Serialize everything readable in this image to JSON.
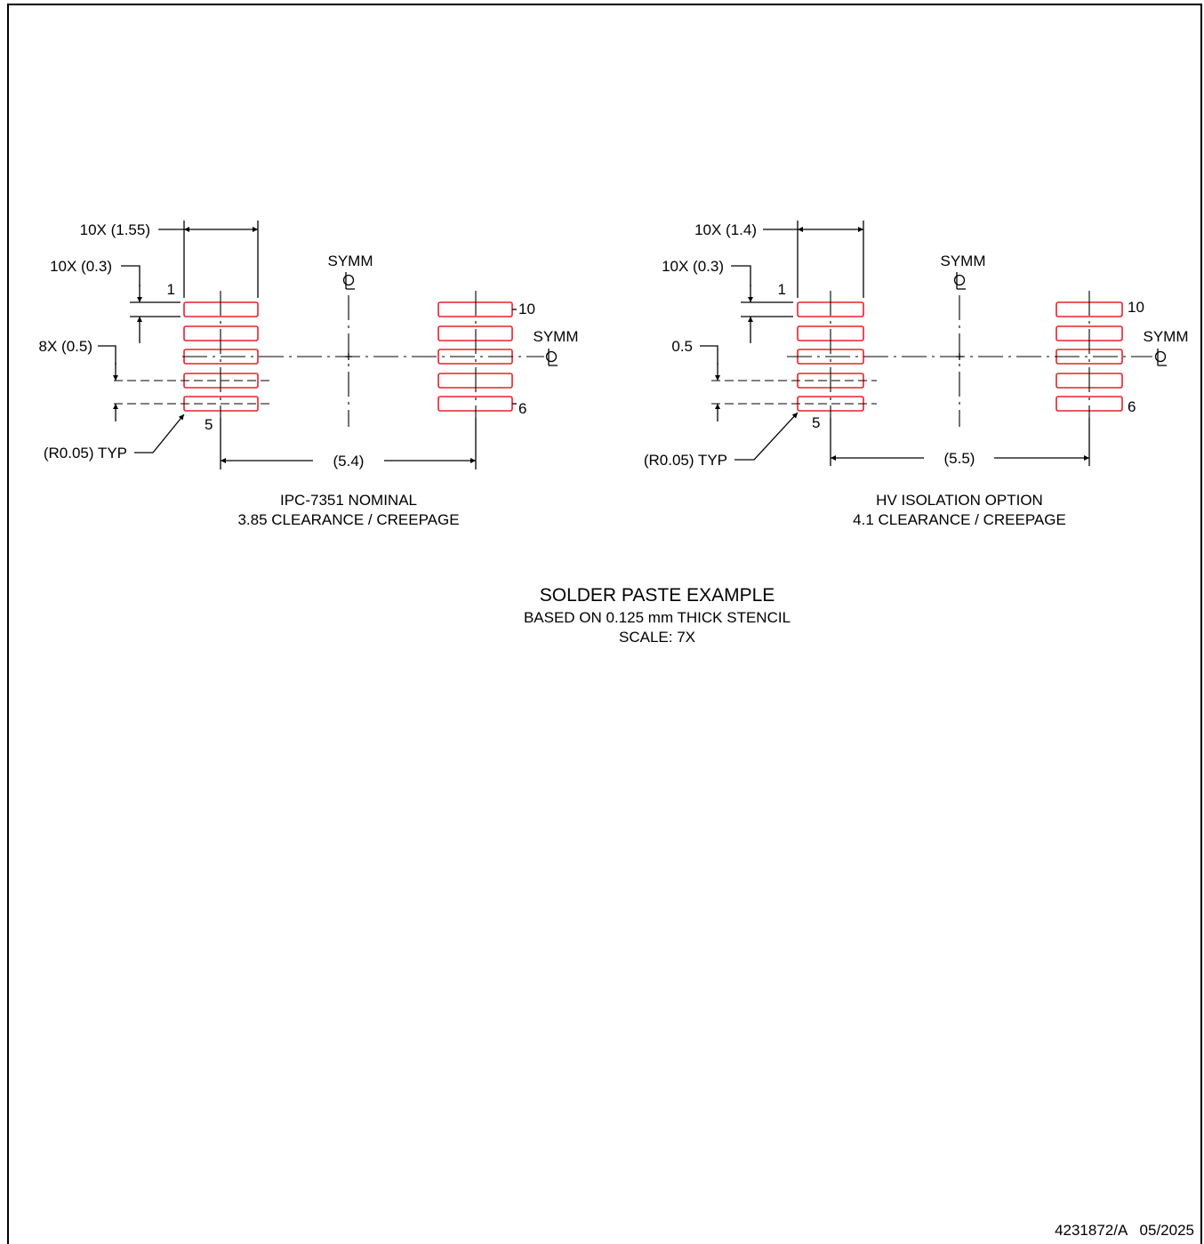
{
  "colors": {
    "pad_outline": "#e8202a",
    "line": "#000000"
  },
  "left_view": {
    "pad_length_dim": "10X (1.55)",
    "pad_width_dim": "10X (0.3)",
    "pitch_dim": "8X (0.5)",
    "radius_dim": "(R0.05) TYP",
    "pad_span_dim": "(5.4)",
    "symm_top": "SYMM",
    "symm_right": "SYMM",
    "pins": {
      "p1": "1",
      "p5": "5",
      "p6": "6",
      "p10": "10"
    },
    "caption_line1": "IPC-7351 NOMINAL",
    "caption_line2": "3.85 CLEARANCE / CREEPAGE"
  },
  "right_view": {
    "pad_length_dim": "10X (1.4)",
    "pad_width_dim": "10X (0.3)",
    "pitch_dim": "0.5",
    "radius_dim": "(R0.05) TYP",
    "pad_span_dim": "(5.5)",
    "symm_top": "SYMM",
    "symm_right": "SYMM",
    "pins": {
      "p1": "1",
      "p5": "5",
      "p6": "6",
      "p10": "10"
    },
    "caption_line1": "HV ISOLATION OPTION",
    "caption_line2": "4.1 CLEARANCE / CREEPAGE"
  },
  "title": {
    "main": "SOLDER PASTE EXAMPLE",
    "line2": "BASED ON 0.125 mm THICK STENCIL",
    "line3": "SCALE: 7X"
  },
  "doc_id": "4231872/A   05/2025"
}
